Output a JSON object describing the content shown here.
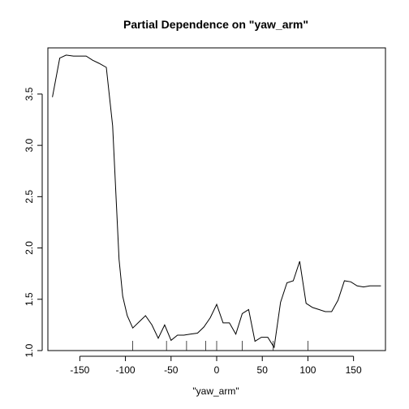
{
  "chart_data": {
    "type": "line",
    "title": "Partial Dependence on \"yaw_arm\"",
    "xlabel": "\"yaw_arm\"",
    "ylabel": "",
    "xlim": [
      -185,
      185
    ],
    "ylim": [
      1.0,
      3.95
    ],
    "xticks": [
      -150,
      -100,
      -50,
      0,
      50,
      100,
      150
    ],
    "xtick_labels": [
      "-150",
      "-100",
      "-50",
      "0",
      "50",
      "100",
      "150"
    ],
    "yticks": [
      1.0,
      1.5,
      2.0,
      2.5,
      3.0,
      3.5
    ],
    "ytick_labels": [
      "1.0",
      "1.5",
      "2.0",
      "2.5",
      "3.0",
      "3.5"
    ],
    "grid": false,
    "legend": "none",
    "line_color": "#000000",
    "x": [
      -180,
      -172,
      -165,
      -157,
      -150,
      -143,
      -136,
      -129,
      -121,
      -114,
      -107,
      -103,
      -98,
      -92,
      -85,
      -78,
      -71,
      -64,
      -57,
      -50,
      -43,
      -36,
      -29,
      -21,
      -14,
      -7,
      0,
      7,
      14,
      21,
      28,
      35,
      42,
      49,
      56,
      63,
      70,
      77,
      84,
      91,
      98,
      105,
      112,
      119,
      126,
      133,
      140,
      147,
      154,
      161,
      168,
      175,
      180
    ],
    "y": [
      3.47,
      3.85,
      3.88,
      3.87,
      3.87,
      3.87,
      3.83,
      3.8,
      3.76,
      3.19,
      1.89,
      1.53,
      1.34,
      1.22,
      1.28,
      1.34,
      1.25,
      1.12,
      1.25,
      1.1,
      1.15,
      1.15,
      1.16,
      1.17,
      1.23,
      1.32,
      1.45,
      1.27,
      1.27,
      1.16,
      1.36,
      1.4,
      1.09,
      1.13,
      1.13,
      1.03,
      1.47,
      1.66,
      1.68,
      1.87,
      1.46,
      1.42,
      1.4,
      1.38,
      1.38,
      1.49,
      1.68,
      1.67,
      1.63,
      1.62,
      1.63,
      1.63,
      1.63
    ],
    "rug": [
      -92,
      -55,
      -33,
      -12,
      0,
      28,
      62,
      100
    ]
  }
}
